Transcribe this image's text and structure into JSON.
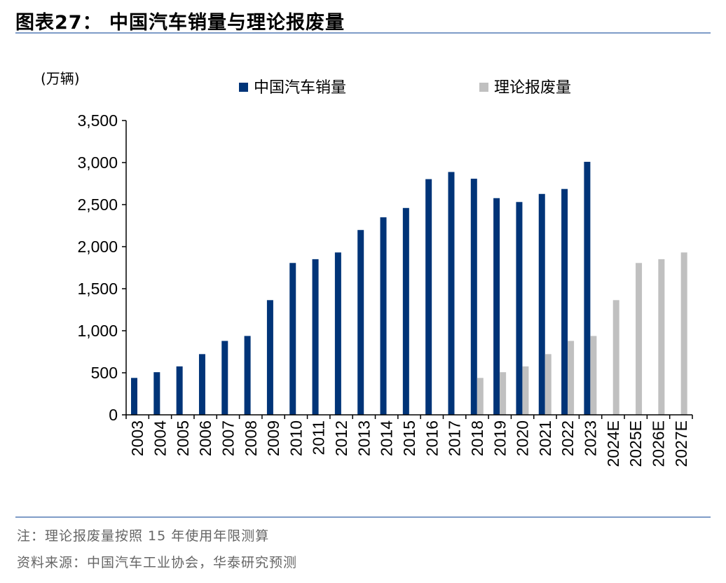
{
  "title": "图表27：  中国汽车销量与理论报废量",
  "notes": {
    "note": "注：理论报废量按照 15 年使用年限测算",
    "source": "资料来源：中国汽车工业协会，华泰研究预测"
  },
  "chart_data": {
    "type": "bar",
    "title": "中国汽车销量与理论报废量",
    "ylabel": "(万辆)",
    "xlabel": "",
    "ylim": [
      0,
      3500
    ],
    "yticks": [
      0,
      500,
      1000,
      1500,
      2000,
      2500,
      3000,
      3500
    ],
    "ytick_labels": [
      "0",
      "500",
      "1,000",
      "1,500",
      "2,000",
      "2,500",
      "3,000",
      "3,500"
    ],
    "grid": false,
    "legend": "top",
    "categories": [
      "2003",
      "2004",
      "2005",
      "2006",
      "2007",
      "2008",
      "2009",
      "2010",
      "2011",
      "2012",
      "2013",
      "2014",
      "2015",
      "2016",
      "2017",
      "2018",
      "2019",
      "2020",
      "2021",
      "2022",
      "2023",
      "2024E",
      "2025E",
      "2026E",
      "2027E"
    ],
    "series": [
      {
        "name": "中国汽车销量",
        "color": "#003478",
        "values": [
          439,
          507,
          576,
          722,
          879,
          938,
          1364,
          1806,
          1851,
          1931,
          2198,
          2349,
          2460,
          2803,
          2888,
          2808,
          2577,
          2531,
          2627,
          2686,
          3009,
          null,
          null,
          null,
          null
        ]
      },
      {
        "name": "理论报废量",
        "color": "#C0C0C0",
        "values": [
          null,
          null,
          null,
          null,
          null,
          null,
          null,
          null,
          null,
          null,
          null,
          null,
          null,
          null,
          null,
          439,
          507,
          576,
          722,
          879,
          938,
          1364,
          1806,
          1851,
          1931
        ]
      }
    ]
  }
}
